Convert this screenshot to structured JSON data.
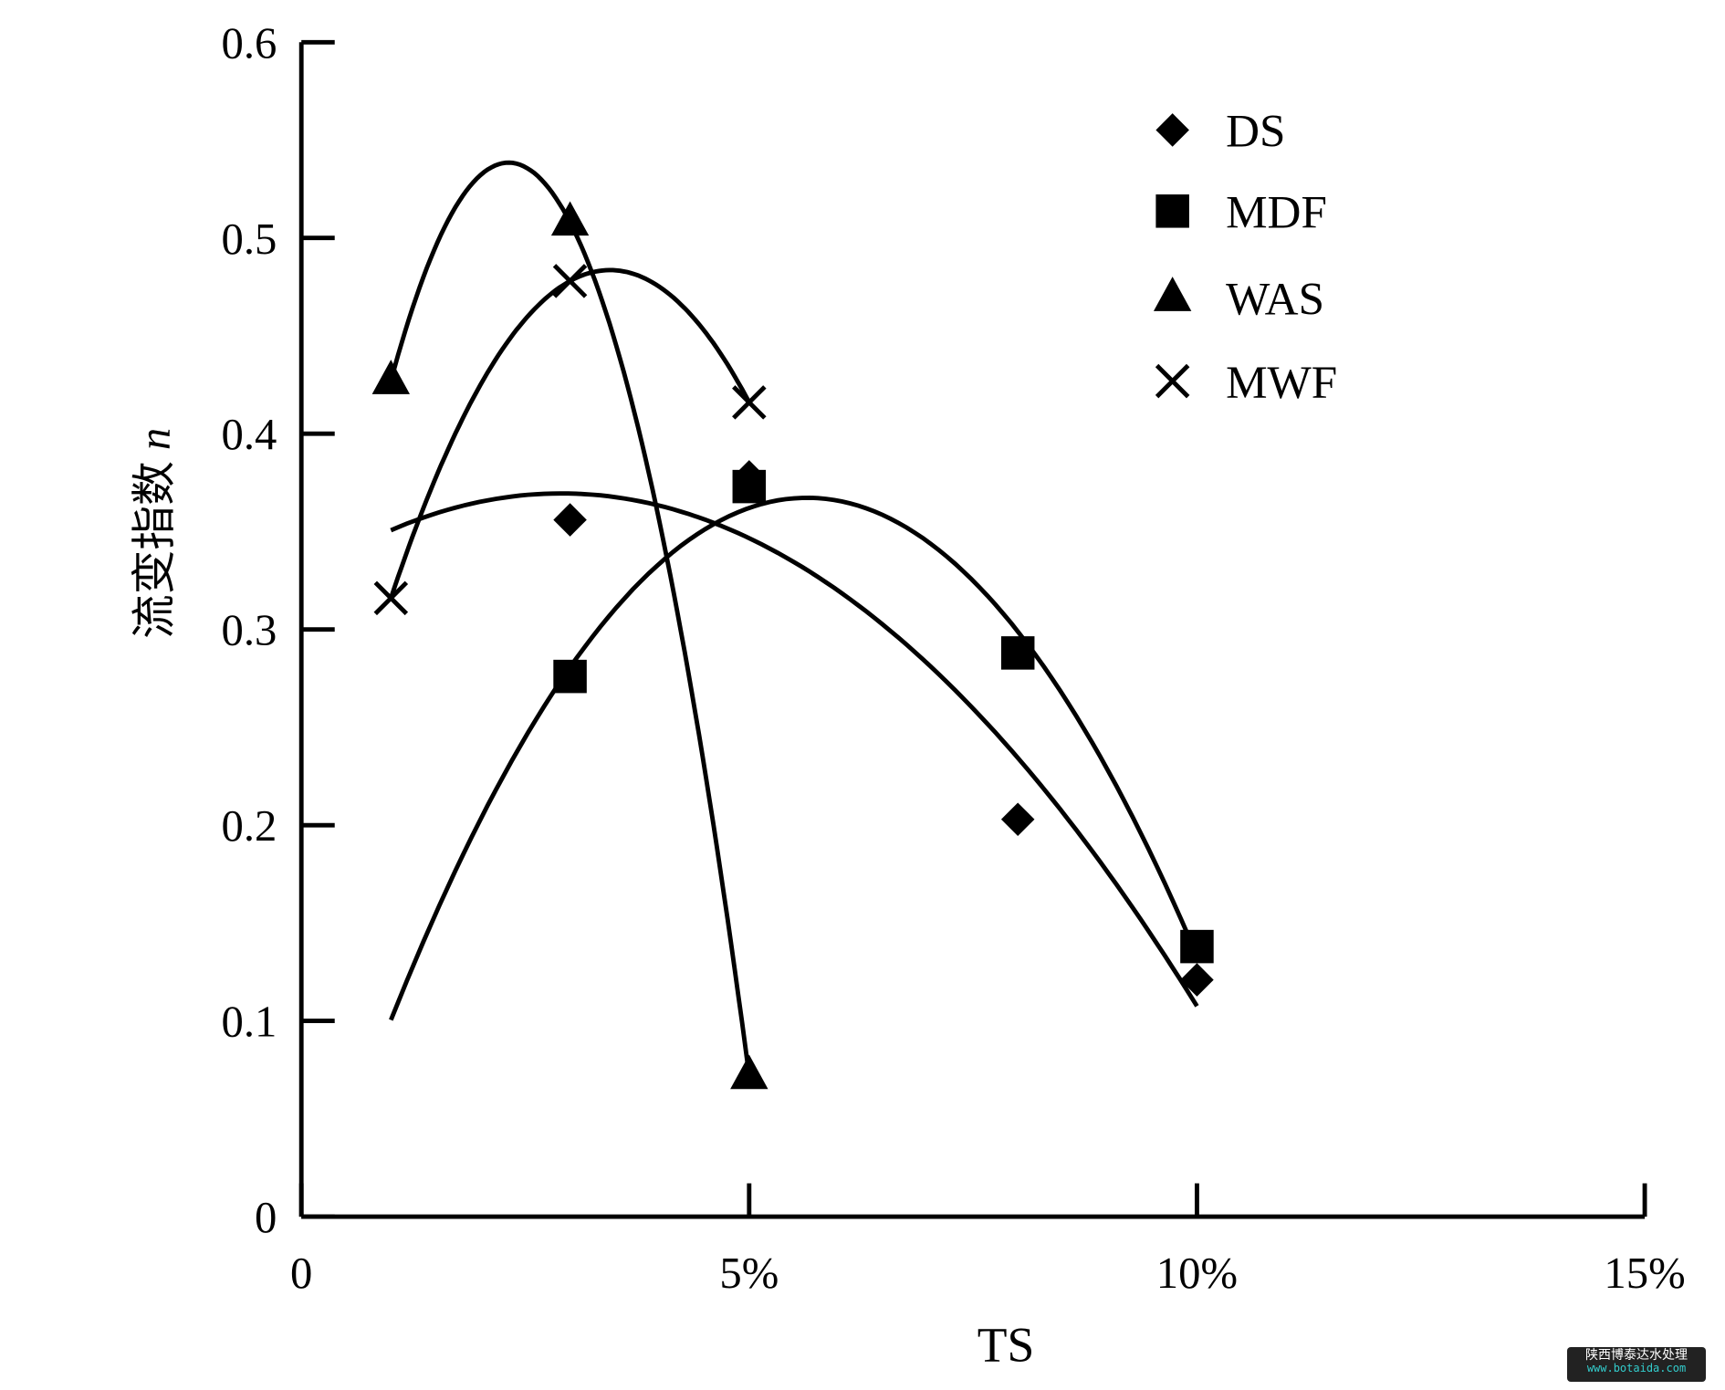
{
  "chart_data": {
    "type": "scatter",
    "title": "",
    "xlabel": "TS",
    "ylabel": "流变指数",
    "ylabel_var": "n",
    "xlim": [
      0,
      15
    ],
    "ylim": [
      0,
      0.6
    ],
    "x_ticks": [
      0,
      5,
      10,
      15
    ],
    "x_tick_labels": [
      "0",
      "5%",
      "10%",
      "15%"
    ],
    "y_ticks": [
      0,
      0.1,
      0.2,
      0.3,
      0.4,
      0.5,
      0.6
    ],
    "y_tick_labels": [
      "0",
      "0.1",
      "0.2",
      "0.3",
      "0.4",
      "0.5",
      "0.6"
    ],
    "grid": false,
    "legend_position": "top-right",
    "trendline": "quadratic fit per series",
    "series": [
      {
        "name": "DS",
        "marker": "diamond",
        "x": [
          3,
          5,
          8,
          10
        ],
        "y": [
          0.356,
          0.378,
          0.203,
          0.121
        ],
        "fit_range": [
          1,
          10
        ]
      },
      {
        "name": "MDF",
        "marker": "square",
        "x": [
          3,
          5,
          8,
          10
        ],
        "y": [
          0.276,
          0.373,
          0.288,
          0.138
        ],
        "fit_range": [
          1,
          10
        ]
      },
      {
        "name": "WAS",
        "marker": "triangle",
        "x": [
          1,
          3,
          5
        ],
        "y": [
          0.427,
          0.508,
          0.072
        ],
        "fit_range": [
          1,
          5
        ]
      },
      {
        "name": "MWF",
        "marker": "cross",
        "x": [
          1,
          3,
          5
        ],
        "y": [
          0.316,
          0.478,
          0.416
        ],
        "fit_range": [
          1,
          5
        ]
      }
    ]
  },
  "watermark": {
    "line1": "陕西博泰达水处理",
    "line2": "www.botaida.com"
  }
}
